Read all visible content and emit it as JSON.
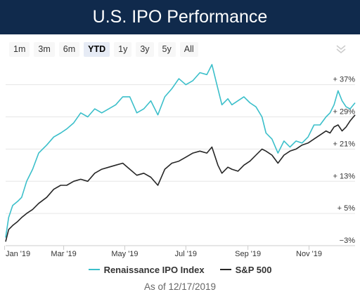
{
  "header": {
    "title": "U.S. IPO Performance"
  },
  "range_selector": {
    "buttons": [
      "1m",
      "3m",
      "6m",
      "YTD",
      "1y",
      "3y",
      "5y",
      "All"
    ],
    "selected": "YTD"
  },
  "export_icon": "double-chevron-down-icon",
  "colors": {
    "ipo": "#3bbfca",
    "sp500": "#262626",
    "header_bg": "#102a4c"
  },
  "footnote": "As of 12/17/2019",
  "chart_data": {
    "type": "line",
    "xlabel": "",
    "ylabel": "",
    "x_ticks": [
      "Jan '19",
      "Mar '19",
      "May '19",
      "Jul '19",
      "Sep '19",
      "Nov '19"
    ],
    "y_ticks": [
      "−3%",
      "+ 5%",
      "+ 13%",
      "+ 21%",
      "+ 29%",
      "+ 37%"
    ],
    "y_tick_values": [
      -3,
      5,
      13,
      21,
      29,
      37
    ],
    "ylim": [
      -3,
      42
    ],
    "xlim": [
      "2019-01-02",
      "2019-12-17"
    ],
    "grid": true,
    "legend_position": "bottom",
    "series": [
      {
        "name": "Renaissance IPO Index",
        "color": "#3bbfca",
        "points": [
          [
            "2019-01-02",
            -1
          ],
          [
            "2019-01-05",
            4
          ],
          [
            "2019-01-09",
            7
          ],
          [
            "2019-01-14",
            8
          ],
          [
            "2019-01-18",
            9
          ],
          [
            "2019-01-23",
            13
          ],
          [
            "2019-01-29",
            16
          ],
          [
            "2019-02-04",
            20
          ],
          [
            "2019-02-12",
            22
          ],
          [
            "2019-02-19",
            24
          ],
          [
            "2019-02-26",
            25
          ],
          [
            "2019-03-04",
            26
          ],
          [
            "2019-03-11",
            27.5
          ],
          [
            "2019-03-18",
            30
          ],
          [
            "2019-03-25",
            29
          ],
          [
            "2019-04-01",
            31
          ],
          [
            "2019-04-08",
            30
          ],
          [
            "2019-04-15",
            31
          ],
          [
            "2019-04-22",
            32
          ],
          [
            "2019-04-29",
            34
          ],
          [
            "2019-05-06",
            34
          ],
          [
            "2019-05-13",
            30
          ],
          [
            "2019-05-20",
            31
          ],
          [
            "2019-05-27",
            33
          ],
          [
            "2019-06-03",
            29.5
          ],
          [
            "2019-06-10",
            34
          ],
          [
            "2019-06-17",
            36
          ],
          [
            "2019-06-24",
            38.5
          ],
          [
            "2019-07-01",
            37
          ],
          [
            "2019-07-08",
            38
          ],
          [
            "2019-07-15",
            40
          ],
          [
            "2019-07-22",
            39.5
          ],
          [
            "2019-07-27",
            42
          ],
          [
            "2019-08-02",
            36
          ],
          [
            "2019-08-06",
            32
          ],
          [
            "2019-08-12",
            33.5
          ],
          [
            "2019-08-16",
            32
          ],
          [
            "2019-08-22",
            33
          ],
          [
            "2019-08-28",
            34
          ],
          [
            "2019-09-03",
            32.5
          ],
          [
            "2019-09-09",
            31.5
          ],
          [
            "2019-09-15",
            29
          ],
          [
            "2019-09-19",
            25
          ],
          [
            "2019-09-25",
            23.5
          ],
          [
            "2019-10-01",
            20
          ],
          [
            "2019-10-07",
            23
          ],
          [
            "2019-10-13",
            21.5
          ],
          [
            "2019-10-19",
            23
          ],
          [
            "2019-10-25",
            22.5
          ],
          [
            "2019-10-31",
            24
          ],
          [
            "2019-11-06",
            27
          ],
          [
            "2019-11-12",
            27
          ],
          [
            "2019-11-18",
            29
          ],
          [
            "2019-11-22",
            30
          ],
          [
            "2019-11-26",
            32
          ],
          [
            "2019-11-30",
            35.5
          ],
          [
            "2019-12-04",
            33
          ],
          [
            "2019-12-08",
            31.5
          ],
          [
            "2019-12-12",
            31
          ],
          [
            "2019-12-17",
            32.5
          ]
        ]
      },
      {
        "name": "S&P 500",
        "color": "#262626",
        "points": [
          [
            "2019-01-02",
            -2
          ],
          [
            "2019-01-05",
            1
          ],
          [
            "2019-01-09",
            2
          ],
          [
            "2019-01-14",
            3
          ],
          [
            "2019-01-18",
            4
          ],
          [
            "2019-01-23",
            5
          ],
          [
            "2019-01-29",
            6
          ],
          [
            "2019-02-04",
            7.5
          ],
          [
            "2019-02-12",
            9
          ],
          [
            "2019-02-19",
            11
          ],
          [
            "2019-02-26",
            12
          ],
          [
            "2019-03-04",
            12
          ],
          [
            "2019-03-11",
            13
          ],
          [
            "2019-03-18",
            13.5
          ],
          [
            "2019-03-25",
            13
          ],
          [
            "2019-04-01",
            15
          ],
          [
            "2019-04-08",
            16
          ],
          [
            "2019-04-15",
            16.5
          ],
          [
            "2019-04-22",
            17
          ],
          [
            "2019-04-29",
            17.5
          ],
          [
            "2019-05-06",
            16
          ],
          [
            "2019-05-13",
            14.5
          ],
          [
            "2019-05-20",
            15
          ],
          [
            "2019-05-27",
            14
          ],
          [
            "2019-06-03",
            12
          ],
          [
            "2019-06-10",
            16
          ],
          [
            "2019-06-17",
            17.5
          ],
          [
            "2019-06-24",
            18
          ],
          [
            "2019-07-01",
            19
          ],
          [
            "2019-07-08",
            20
          ],
          [
            "2019-07-15",
            20.5
          ],
          [
            "2019-07-22",
            20
          ],
          [
            "2019-07-27",
            21.5
          ],
          [
            "2019-08-02",
            17
          ],
          [
            "2019-08-06",
            15
          ],
          [
            "2019-08-12",
            16.5
          ],
          [
            "2019-08-16",
            16
          ],
          [
            "2019-08-22",
            15.5
          ],
          [
            "2019-08-28",
            17
          ],
          [
            "2019-09-03",
            18
          ],
          [
            "2019-09-09",
            19.5
          ],
          [
            "2019-09-15",
            21
          ],
          [
            "2019-09-19",
            20.5
          ],
          [
            "2019-09-25",
            19.5
          ],
          [
            "2019-10-01",
            17.5
          ],
          [
            "2019-10-07",
            19.5
          ],
          [
            "2019-10-13",
            20.5
          ],
          [
            "2019-10-19",
            21
          ],
          [
            "2019-10-25",
            22
          ],
          [
            "2019-10-31",
            22.5
          ],
          [
            "2019-11-06",
            23.5
          ],
          [
            "2019-11-12",
            24.5
          ],
          [
            "2019-11-18",
            25.5
          ],
          [
            "2019-11-22",
            25
          ],
          [
            "2019-11-26",
            26.5
          ],
          [
            "2019-11-30",
            27
          ],
          [
            "2019-12-04",
            25.5
          ],
          [
            "2019-12-08",
            26.5
          ],
          [
            "2019-12-12",
            28
          ],
          [
            "2019-12-17",
            29.5
          ]
        ]
      }
    ]
  }
}
